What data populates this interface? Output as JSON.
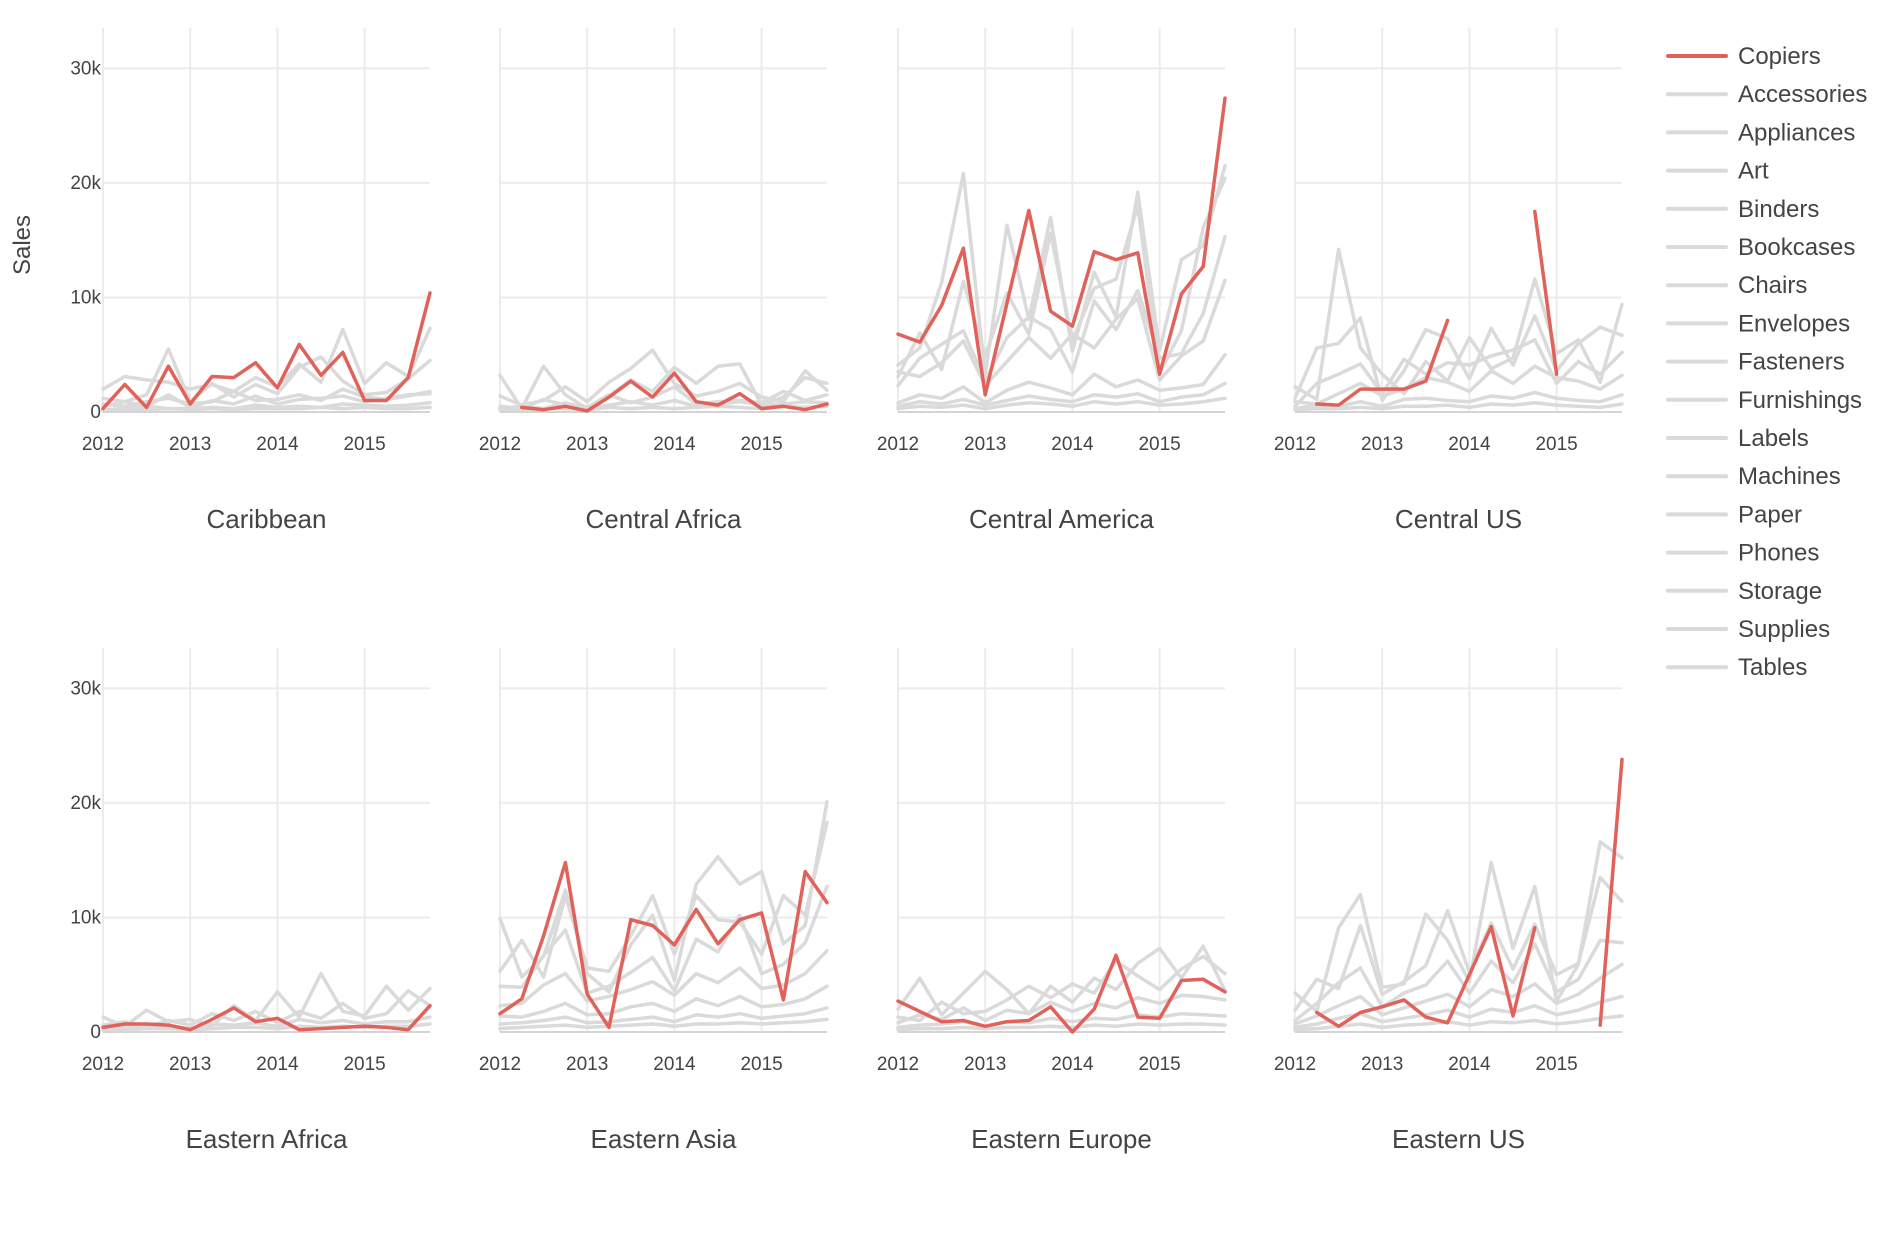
{
  "chart_data": {
    "type": "line",
    "ylabel": "Sales",
    "xlim": [
      2012,
      2015.75
    ],
    "ylim": [
      0,
      33000
    ],
    "x_ticks": [
      2012,
      2013,
      2014,
      2015
    ],
    "x_tick_labels": [
      "2012",
      "2013",
      "2014",
      "2015"
    ],
    "y_ticks": [
      0,
      10000,
      20000,
      30000
    ],
    "y_tick_labels": [
      "0",
      "10k",
      "20k",
      "30k"
    ],
    "grid": true,
    "legend_position": "right",
    "colors": {
      "highlight": "#E0625A",
      "background": "#DADADA",
      "grid": "#EBEBEB",
      "text": "#444444"
    },
    "legend": [
      "Copiers",
      "Accessories",
      "Appliances",
      "Art",
      "Binders",
      "Bookcases",
      "Chairs",
      "Envelopes",
      "Fasteners",
      "Furnishings",
      "Labels",
      "Machines",
      "Paper",
      "Phones",
      "Storage",
      "Supplies",
      "Tables"
    ],
    "highlight_series": "Copiers",
    "x": [
      2012,
      2012.25,
      2012.5,
      2012.75,
      2013,
      2013.25,
      2013.5,
      2013.75,
      2014,
      2014.25,
      2014.5,
      2014.75,
      2015,
      2015.25,
      2015.5,
      2015.75
    ],
    "panels": [
      {
        "title": "Caribbean",
        "copiers": [
          300,
          2400,
          400,
          4000,
          700,
          3100,
          3000,
          4300,
          2100,
          5900,
          3200,
          5200,
          1000,
          1000,
          3000,
          10400
        ],
        "others": [
          [
            2000,
            3100,
            2800,
            2600,
            2000,
            2400,
            1800,
            3000,
            2200,
            4200,
            2600,
            7200,
            2500,
            4300,
            3100,
            7300
          ],
          [
            1200,
            900,
            1500,
            5500,
            900,
            2500,
            1300,
            2400,
            1600,
            3900,
            4800,
            2700,
            1500,
            1700,
            2900,
            4500
          ],
          [
            700,
            500,
            900,
            1200,
            700,
            900,
            1800,
            1000,
            1100,
            1500,
            1000,
            2000,
            1300,
            1100,
            1400,
            1800
          ],
          [
            500,
            900,
            500,
            1500,
            400,
            1000,
            700,
            1400,
            700,
            1100,
            1200,
            1400,
            900,
            1200,
            1500,
            1600
          ],
          [
            200,
            300,
            500,
            300,
            300,
            400,
            300,
            600,
            400,
            500,
            400,
            700,
            600,
            500,
            600,
            800
          ],
          [
            100,
            200,
            200,
            300,
            200,
            300,
            200,
            300,
            300,
            300,
            400,
            300,
            400,
            300,
            300,
            400
          ]
        ]
      },
      {
        "title": "Central Africa",
        "copiers": [
          null,
          400,
          200,
          500,
          100,
          1300,
          2700,
          1300,
          3400,
          900,
          600,
          1600,
          300,
          500,
          200,
          700
        ],
        "others": [
          [
            3200,
            300,
            4000,
            1500,
            300,
            1400,
            2800,
            1800,
            3900,
            2500,
            4000,
            4200,
            600,
            1300,
            3000,
            2500
          ],
          [
            1400,
            600,
            1000,
            2200,
            900,
            2600,
            3800,
            5400,
            2500,
            1400,
            1800,
            2500,
            1300,
            900,
            3600,
            1900
          ],
          [
            500,
            300,
            1100,
            600,
            400,
            1500,
            800,
            1300,
            2200,
            700,
            900,
            1000,
            800,
            1800,
            1000,
            1500
          ],
          [
            300,
            500,
            300,
            800,
            300,
            600,
            900,
            600,
            1000,
            500,
            700,
            900,
            600,
            700,
            900,
            800
          ],
          [
            200,
            200,
            300,
            300,
            200,
            400,
            300,
            400,
            300,
            400,
            500,
            400,
            300,
            500,
            400,
            500
          ]
        ]
      },
      {
        "title": "Central America",
        "copiers": [
          6800,
          6100,
          9300,
          14300,
          1500,
          9500,
          17600,
          8800,
          7500,
          14000,
          13300,
          13900,
          3300,
          10300,
          12700,
          27400
        ],
        "others": [
          [
            4100,
            5600,
            11300,
            20800,
            3200,
            16300,
            8100,
            17000,
            5300,
            12200,
            8300,
            19200,
            5400,
            13300,
            14500,
            21500
          ],
          [
            3100,
            6900,
            3700,
            11400,
            4900,
            10400,
            6800,
            15600,
            6200,
            10800,
            11600,
            18000,
            3400,
            7100,
            16100,
            20400
          ],
          [
            2300,
            4700,
            5900,
            7100,
            2700,
            6500,
            8300,
            7200,
            3500,
            9700,
            7200,
            10600,
            4700,
            5100,
            8600,
            15300
          ],
          [
            3500,
            3100,
            4300,
            6200,
            2300,
            4400,
            6500,
            4700,
            6800,
            5600,
            8100,
            9900,
            2800,
            4900,
            6200,
            11500
          ],
          [
            800,
            1500,
            1200,
            2200,
            800,
            1900,
            2600,
            2100,
            1500,
            3300,
            2200,
            2800,
            1900,
            2100,
            2400,
            5000
          ],
          [
            500,
            900,
            700,
            1100,
            600,
            1000,
            1400,
            1100,
            900,
            1500,
            1300,
            1600,
            900,
            1300,
            1500,
            2500
          ],
          [
            300,
            500,
            400,
            600,
            300,
            600,
            800,
            700,
            500,
            900,
            700,
            900,
            600,
            700,
            900,
            1200
          ]
        ]
      },
      {
        "title": "Central US",
        "copiers": [
          null,
          700,
          600,
          2000,
          2000,
          2000,
          2700,
          8000,
          null,
          null,
          null,
          17500,
          3300,
          null,
          400,
          null
        ],
        "others": [
          [
            2200,
            1100,
            14200,
            5600,
            3300,
            1600,
            4400,
            2700,
            6500,
            3800,
            4700,
            11600,
            5100,
            6300,
            2600,
            9400
          ],
          [
            1200,
            5600,
            6000,
            8200,
            1000,
            3600,
            7200,
            6400,
            2900,
            7300,
            4100,
            8400,
            3600,
            6000,
            7400,
            6700
          ],
          [
            500,
            2500,
            3300,
            4200,
            1600,
            4600,
            3300,
            4300,
            4100,
            4900,
            5400,
            6300,
            2500,
            4400,
            3300,
            5200
          ],
          [
            900,
            700,
            1600,
            2500,
            1400,
            2000,
            3000,
            2600,
            1800,
            3600,
            2500,
            4000,
            3000,
            2700,
            2000,
            3200
          ],
          [
            300,
            600,
            500,
            900,
            500,
            1100,
            1200,
            1000,
            900,
            1400,
            1200,
            1700,
            1200,
            1000,
            900,
            1500
          ],
          [
            200,
            300,
            300,
            400,
            300,
            500,
            500,
            600,
            400,
            700,
            600,
            800,
            600,
            500,
            400,
            700
          ]
        ]
      },
      {
        "title": "Eastern Africa",
        "copiers": [
          400,
          700,
          700,
          600,
          200,
          1100,
          2100,
          900,
          1200,
          200,
          300,
          400,
          500,
          400,
          200,
          2300
        ],
        "others": [
          [
            1300,
            500,
            1900,
            900,
            1100,
            500,
            2300,
            1000,
            3500,
            1300,
            5100,
            1800,
            1400,
            4000,
            1900,
            3800
          ],
          [
            600,
            900,
            500,
            1000,
            600,
            1600,
            1000,
            1800,
            800,
            1800,
            1200,
            2500,
            1200,
            1600,
            3600,
            2300
          ],
          [
            300,
            400,
            500,
            500,
            300,
            700,
            600,
            800,
            500,
            1100,
            800,
            1000,
            700,
            900,
            900,
            1300
          ],
          [
            200,
            200,
            300,
            300,
            200,
            300,
            400,
            400,
            300,
            500,
            400,
            500,
            400,
            500,
            500,
            700
          ]
        ]
      },
      {
        "title": "Eastern Asia",
        "copiers": [
          1600,
          2900,
          8400,
          14800,
          3300,
          400,
          9800,
          9300,
          7600,
          10700,
          7700,
          9800,
          10400,
          2800,
          14000,
          11300
        ],
        "others": [
          [
            9900,
            4800,
            6600,
            12400,
            5100,
            3500,
            7600,
            10200,
            4500,
            12900,
            15300,
            12900,
            14000,
            7700,
            9300,
            20100
          ],
          [
            5300,
            8000,
            4800,
            11900,
            5600,
            5300,
            8400,
            11900,
            6800,
            11900,
            9800,
            9600,
            6800,
            11900,
            10200,
            18300
          ],
          [
            4000,
            3900,
            6700,
            8900,
            3400,
            4000,
            5200,
            6500,
            3600,
            8100,
            7000,
            10200,
            5100,
            5900,
            7800,
            12700
          ],
          [
            2300,
            2500,
            4100,
            5100,
            2700,
            3100,
            3700,
            4400,
            3200,
            5100,
            4300,
            5600,
            3800,
            4100,
            5100,
            7100
          ],
          [
            1400,
            1300,
            1800,
            2500,
            1500,
            1600,
            2200,
            2500,
            1800,
            2900,
            2300,
            3100,
            2200,
            2400,
            2900,
            4000
          ],
          [
            700,
            800,
            1000,
            1300,
            800,
            900,
            1100,
            1300,
            900,
            1500,
            1300,
            1600,
            1200,
            1400,
            1600,
            2100
          ],
          [
            300,
            400,
            500,
            600,
            400,
            500,
            600,
            700,
            500,
            700,
            700,
            800,
            700,
            800,
            900,
            1100
          ]
        ]
      },
      {
        "title": "Eastern Europe",
        "copiers": [
          2700,
          1800,
          900,
          1000,
          500,
          900,
          1000,
          2200,
          0,
          2000,
          6700,
          1300,
          1200,
          4500,
          4600,
          3500
        ],
        "others": [
          [
            2000,
            4700,
            1500,
            3400,
            5300,
            3700,
            1600,
            4000,
            2600,
            4700,
            3700,
            6000,
            7300,
            4700,
            7500,
            3600
          ],
          [
            1300,
            1000,
            2600,
            1600,
            1800,
            2800,
            4000,
            3000,
            4200,
            3400,
            6200,
            4900,
            3700,
            5500,
            6600,
            5100
          ],
          [
            800,
            1500,
            1100,
            2100,
            1000,
            1900,
            1600,
            2600,
            1800,
            2500,
            2100,
            3000,
            2500,
            3200,
            3100,
            2800
          ],
          [
            400,
            600,
            700,
            900,
            500,
            900,
            800,
            1200,
            900,
            1200,
            1100,
            1500,
            1300,
            1600,
            1500,
            1400
          ],
          [
            200,
            300,
            300,
            400,
            300,
            400,
            400,
            500,
            400,
            600,
            500,
            700,
            600,
            700,
            700,
            600
          ]
        ]
      },
      {
        "title": "Eastern US",
        "copiers": [
          null,
          1700,
          500,
          1700,
          2200,
          2800,
          1300,
          800,
          5000,
          9200,
          1400,
          9100,
          null,
          null,
          600,
          23800
        ],
        "others": [
          [
            3400,
            1800,
            9100,
            12000,
            3900,
            4200,
            10300,
            8000,
            4400,
            14800,
            7300,
            12700,
            2700,
            5900,
            16600,
            15200
          ],
          [
            1900,
            4600,
            3800,
            9300,
            3300,
            4400,
            5800,
            10600,
            5200,
            9500,
            5500,
            9400,
            5000,
            6000,
            13500,
            11400
          ],
          [
            1000,
            2500,
            4300,
            5600,
            2200,
            3400,
            4100,
            6200,
            3400,
            6200,
            4300,
            7700,
            3500,
            4600,
            8000,
            7800
          ],
          [
            700,
            1400,
            2300,
            3100,
            1500,
            2100,
            2700,
            3300,
            2200,
            3700,
            3100,
            4200,
            2500,
            3300,
            4700,
            5900
          ],
          [
            400,
            700,
            1200,
            1600,
            900,
            1200,
            1500,
            1900,
            1300,
            2000,
            1700,
            2300,
            1500,
            1900,
            2600,
            3100
          ],
          [
            200,
            300,
            500,
            700,
            400,
            600,
            700,
            900,
            600,
            900,
            800,
            1000,
            700,
            900,
            1200,
            1400
          ]
        ]
      }
    ]
  }
}
